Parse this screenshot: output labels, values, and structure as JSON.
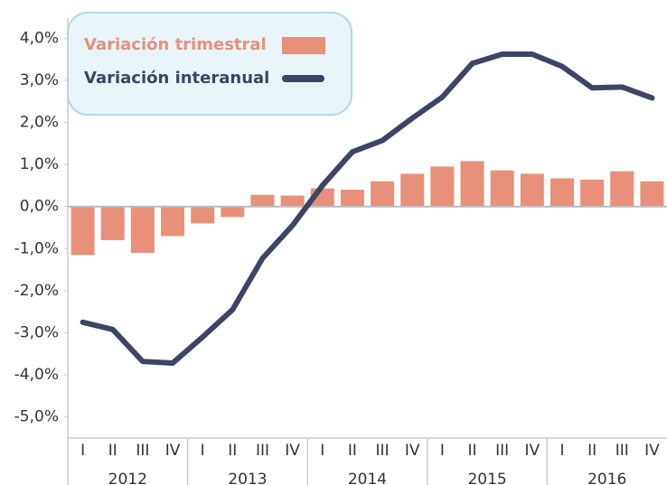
{
  "chart_data": {
    "type": "bar_line",
    "categories": [
      "I",
      "II",
      "III",
      "IV",
      "I",
      "II",
      "III",
      "IV",
      "I",
      "II",
      "III",
      "IV",
      "I",
      "II",
      "III",
      "IV",
      "I",
      "II",
      "III",
      "IV"
    ],
    "years": [
      "2012",
      "2013",
      "2014",
      "2015",
      "2016"
    ],
    "series": [
      {
        "name": "Variación trimestral",
        "type": "bar",
        "color": "#e8907a",
        "values": [
          -1.15,
          -0.8,
          -1.1,
          -0.7,
          -0.4,
          -0.25,
          0.28,
          0.26,
          0.43,
          0.4,
          0.6,
          0.78,
          0.95,
          1.08,
          0.86,
          0.78,
          0.67,
          0.64,
          0.84,
          0.6
        ]
      },
      {
        "name": "Variación interanual",
        "type": "line",
        "color": "#3d4466",
        "values": [
          -2.75,
          -2.92,
          -3.68,
          -3.72,
          -3.1,
          -2.45,
          -1.23,
          -0.45,
          0.5,
          1.3,
          1.57,
          2.1,
          2.6,
          3.4,
          3.62,
          3.62,
          3.33,
          2.82,
          2.84,
          2.58
        ]
      }
    ],
    "ylim": [
      -5.5,
      4.5
    ],
    "yticks": [
      {
        "value": 4,
        "label": "4,0%"
      },
      {
        "value": 3,
        "label": "3,0%"
      },
      {
        "value": 2,
        "label": "2,0%"
      },
      {
        "value": 1,
        "label": "1,0%"
      },
      {
        "value": 0,
        "label": "0,0%"
      },
      {
        "value": -1,
        "label": "-1,0%"
      },
      {
        "value": -2,
        "label": "-2,0%"
      },
      {
        "value": -3,
        "label": "-3,0%"
      },
      {
        "value": -4,
        "label": "-4,0%"
      },
      {
        "value": -5,
        "label": "-5,0%"
      }
    ],
    "legend": "upper left"
  }
}
